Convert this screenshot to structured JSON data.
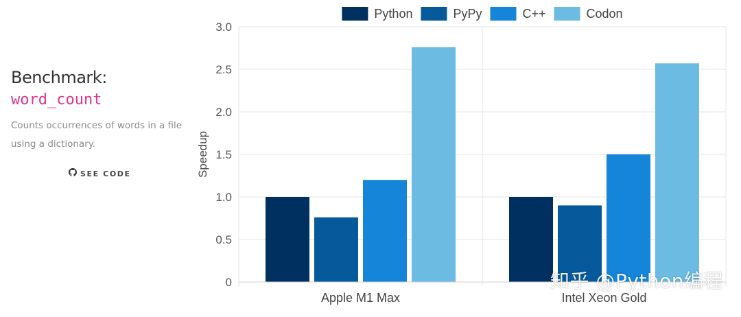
{
  "sidebar": {
    "title": "Benchmark:",
    "benchmark_name": "word_count",
    "description": "Counts occurrences of words in a file using a dictionary.",
    "see_code_label": "SEE CODE",
    "see_code_icon": "github-icon"
  },
  "watermark": "知乎 @Python编程",
  "chart_data": {
    "type": "bar",
    "categories": [
      "Apple M1 Max",
      "Intel Xeon Gold"
    ],
    "series": [
      {
        "name": "Python",
        "color": "#00305f",
        "values": [
          1.0,
          1.0
        ]
      },
      {
        "name": "PyPy",
        "color": "#065a9c",
        "values": [
          0.76,
          0.9
        ]
      },
      {
        "name": "C++",
        "color": "#1485d8",
        "values": [
          1.2,
          1.5
        ]
      },
      {
        "name": "Codon",
        "color": "#6bbbe3",
        "values": [
          2.76,
          2.57
        ]
      }
    ],
    "ylabel": "Speedup",
    "xlabel": "",
    "ylim": [
      0,
      3.0
    ],
    "yticks": [
      "0",
      "0.5",
      "1.0",
      "1.5",
      "2.0",
      "2.5",
      "3.0"
    ],
    "legend_position": "top",
    "grid": true
  }
}
